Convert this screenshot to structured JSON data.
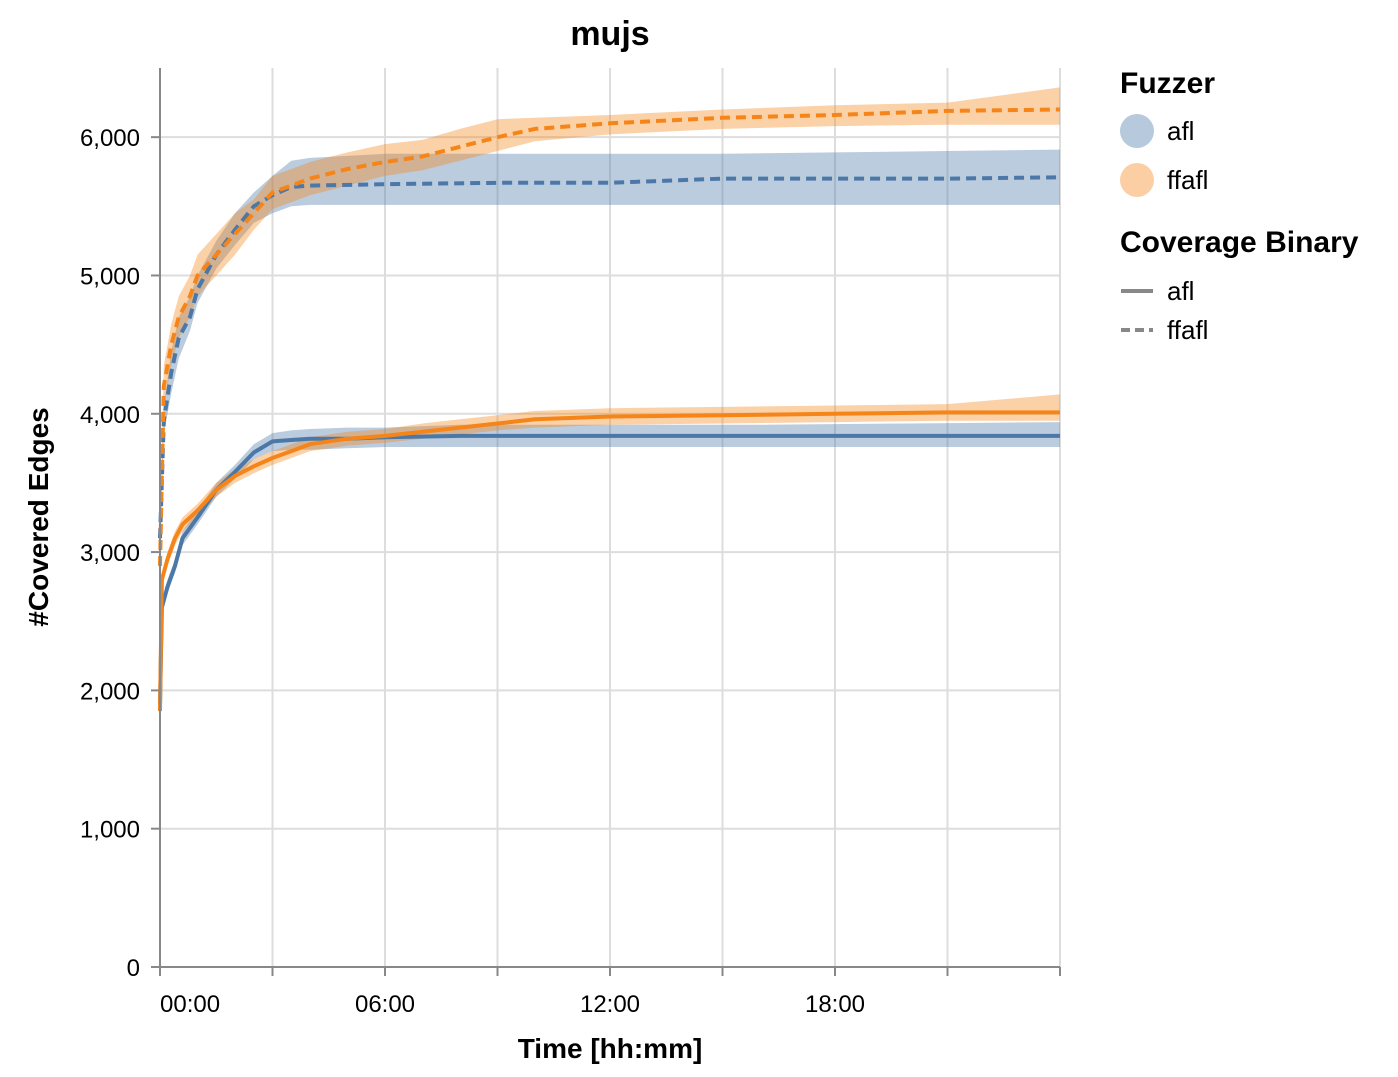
{
  "chart_data": {
    "type": "line",
    "title": "mujs",
    "xlabel": "Time [hh:mm]",
    "ylabel": "#Covered Edges",
    "x_unit": "hours",
    "xlim": [
      0,
      24
    ],
    "ylim": [
      0,
      6500
    ],
    "x_ticks": [
      {
        "value": 0,
        "label": "00:00"
      },
      {
        "value": 6,
        "label": "06:00"
      },
      {
        "value": 12,
        "label": "12:00"
      },
      {
        "value": 18,
        "label": "18:00"
      }
    ],
    "x_grid": [
      0,
      3,
      6,
      9,
      12,
      15,
      18,
      21,
      24
    ],
    "y_ticks": [
      {
        "value": 0,
        "label": "0"
      },
      {
        "value": 1000,
        "label": "1,000"
      },
      {
        "value": 2000,
        "label": "2,000"
      },
      {
        "value": 3000,
        "label": "3,000"
      },
      {
        "value": 4000,
        "label": "4,000"
      },
      {
        "value": 5000,
        "label": "5,000"
      },
      {
        "value": 6000,
        "label": "6,000"
      }
    ],
    "grid": true,
    "legend_position": "right",
    "legend": {
      "fuzzer_title": "Fuzzer",
      "fuzzer_items": [
        {
          "label": "afl",
          "color": "#4c78a8"
        },
        {
          "label": "ffafl",
          "color": "#f58518"
        }
      ],
      "binary_title": "Coverage Binary",
      "binary_items": [
        {
          "label": "afl",
          "dash": "solid"
        },
        {
          "label": "ffafl",
          "dash": "dashed"
        }
      ]
    },
    "series": [
      {
        "fuzzer": "afl",
        "coverage_binary": "ffafl",
        "color": "#4c78a8",
        "dashed": true,
        "x": [
          0,
          0.1,
          0.3,
          0.5,
          0.8,
          1.0,
          1.5,
          2.0,
          2.5,
          3.0,
          3.5,
          4.0,
          6.0,
          9.0,
          12.0,
          15.0,
          18.0,
          21.0,
          24.0
        ],
        "y": [
          3100,
          3950,
          4300,
          4550,
          4700,
          4900,
          5150,
          5330,
          5500,
          5580,
          5640,
          5650,
          5660,
          5670,
          5670,
          5700,
          5700,
          5700,
          5710
        ],
        "low": [
          3000,
          3850,
          4150,
          4400,
          4600,
          4800,
          5050,
          5220,
          5380,
          5450,
          5500,
          5510,
          5510,
          5510,
          5510,
          5510,
          5510,
          5510,
          5510
        ],
        "high": [
          3300,
          4050,
          4450,
          4700,
          4850,
          5000,
          5250,
          5450,
          5600,
          5720,
          5830,
          5850,
          5880,
          5880,
          5880,
          5880,
          5890,
          5900,
          5910
        ]
      },
      {
        "fuzzer": "ffafl",
        "coverage_binary": "ffafl",
        "color": "#f58518",
        "dashed": true,
        "x": [
          0,
          0.1,
          0.3,
          0.5,
          0.8,
          1.0,
          1.5,
          2.0,
          2.5,
          3.0,
          3.5,
          4.0,
          5.0,
          6.0,
          7.0,
          8.0,
          9.0,
          10.0,
          12.0,
          15.0,
          18.0,
          21.0,
          24.0
        ],
        "y": [
          2900,
          4200,
          4500,
          4700,
          4850,
          5000,
          5150,
          5300,
          5450,
          5600,
          5650,
          5700,
          5770,
          5820,
          5860,
          5930,
          6000,
          6060,
          6100,
          6140,
          6160,
          6190,
          6200
        ],
        "low": [
          2750,
          4050,
          4350,
          4550,
          4700,
          4850,
          5000,
          5150,
          5330,
          5480,
          5530,
          5580,
          5650,
          5720,
          5760,
          5830,
          5900,
          5970,
          6020,
          6060,
          6080,
          6090,
          6090
        ],
        "high": [
          3050,
          4350,
          4650,
          4850,
          5000,
          5150,
          5300,
          5450,
          5550,
          5720,
          5770,
          5820,
          5890,
          5950,
          5980,
          6060,
          6130,
          6140,
          6160,
          6200,
          6230,
          6250,
          6360
        ]
      },
      {
        "fuzzer": "afl",
        "coverage_binary": "afl",
        "color": "#4c78a8",
        "dashed": false,
        "x": [
          0,
          0.05,
          0.2,
          0.4,
          0.6,
          1.0,
          1.5,
          2.0,
          2.5,
          3.0,
          3.5,
          4.0,
          5.0,
          6.0,
          8.0,
          12.0,
          16.0,
          20.0,
          24.0
        ],
        "y": [
          1900,
          2600,
          2750,
          2900,
          3100,
          3250,
          3450,
          3580,
          3720,
          3800,
          3810,
          3820,
          3820,
          3830,
          3840,
          3840,
          3840,
          3840,
          3840
        ],
        "low": [
          1850,
          2550,
          2700,
          2850,
          3050,
          3200,
          3400,
          3530,
          3670,
          3730,
          3740,
          3740,
          3750,
          3760,
          3760,
          3760,
          3760,
          3760,
          3760
        ],
        "high": [
          1950,
          2650,
          2800,
          2950,
          3150,
          3300,
          3500,
          3630,
          3780,
          3860,
          3880,
          3890,
          3900,
          3900,
          3920,
          3920,
          3920,
          3930,
          3940
        ]
      },
      {
        "fuzzer": "ffafl",
        "coverage_binary": "afl",
        "color": "#f58518",
        "dashed": false,
        "x": [
          0,
          0.05,
          0.2,
          0.4,
          0.6,
          1.0,
          1.5,
          2.0,
          2.5,
          3.0,
          3.5,
          4.0,
          5.0,
          6.0,
          7.0,
          8.0,
          9.0,
          10.0,
          12.0,
          15.0,
          18.0,
          21.0,
          24.0
        ],
        "y": [
          1850,
          2800,
          2950,
          3100,
          3200,
          3300,
          3450,
          3550,
          3620,
          3680,
          3730,
          3780,
          3820,
          3840,
          3870,
          3900,
          3930,
          3960,
          3980,
          3990,
          4000,
          4010,
          4010
        ],
        "low": [
          1800,
          2750,
          2900,
          3050,
          3150,
          3250,
          3400,
          3500,
          3570,
          3630,
          3680,
          3730,
          3770,
          3790,
          3820,
          3850,
          3880,
          3900,
          3920,
          3930,
          3940,
          3950,
          3950
        ],
        "high": [
          1900,
          2850,
          3000,
          3150,
          3250,
          3350,
          3500,
          3600,
          3670,
          3730,
          3780,
          3830,
          3870,
          3890,
          3930,
          3960,
          3990,
          4020,
          4040,
          4050,
          4060,
          4070,
          4140
        ]
      }
    ]
  }
}
